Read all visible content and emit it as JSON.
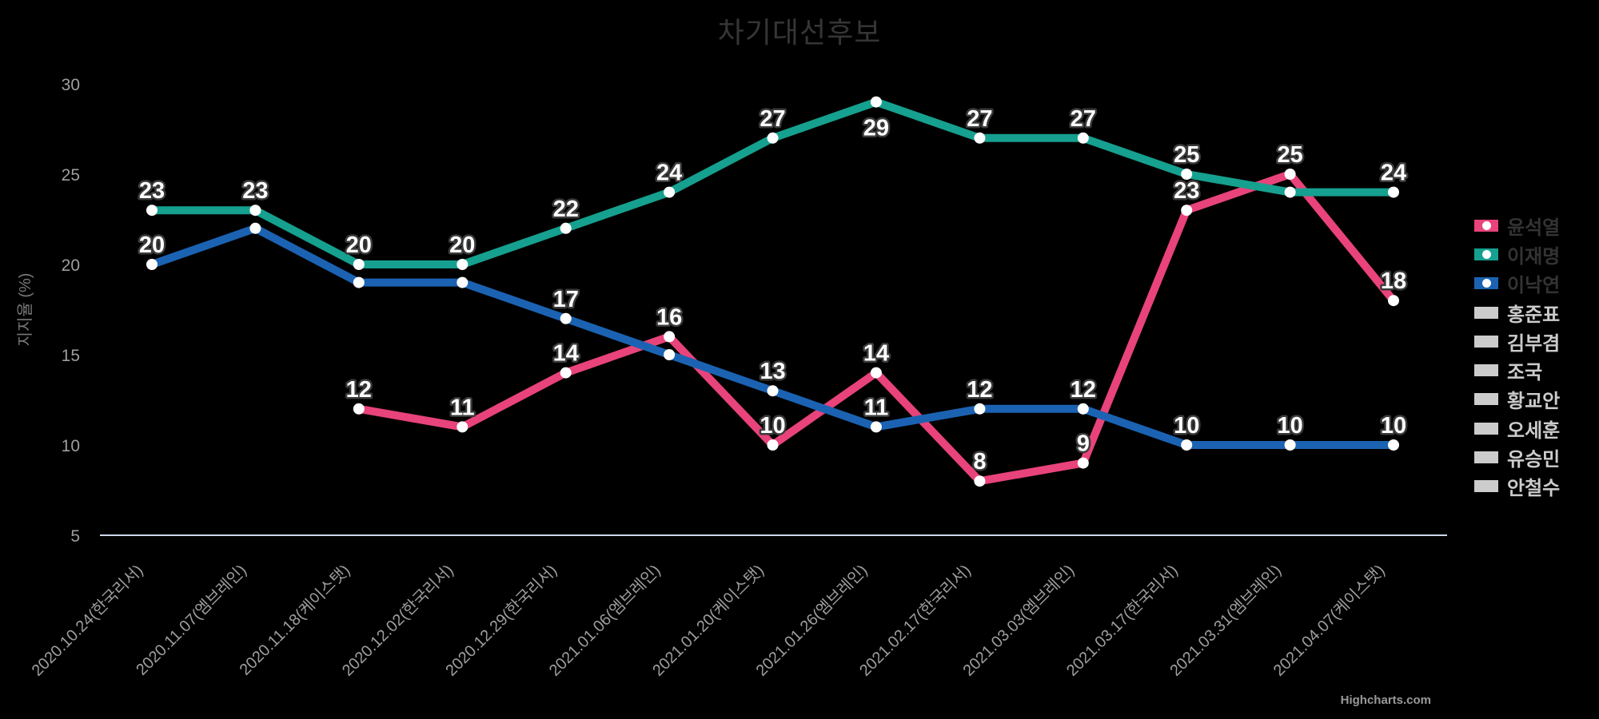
{
  "title": "차기대선후보",
  "credits": "Highcharts.com",
  "colors": {
    "background": "#000000",
    "title": "#353535",
    "axis_label": "#9e9e9e",
    "axis_line": "#ccd6eb",
    "y_axis_title": "#787878",
    "legend_active_text": "#333333",
    "legend_disabled": "#cccccc",
    "data_label_text": "#ffffff",
    "data_label_outline": "#3a3a3a",
    "marker": "#ffffff"
  },
  "chart_data": {
    "type": "line",
    "title": "차기대선후보",
    "xlabel": "",
    "ylabel": "지지율 (%)",
    "ylim": [
      5,
      30
    ],
    "yticks": [
      5,
      10,
      15,
      20,
      25,
      30
    ],
    "grid": false,
    "legend_position": "right",
    "categories": [
      "2020.10.24(한국리서)",
      "2020.11.07(엠브레인)",
      "2020.11.18(케이스탯)",
      "2020.12.02(한국리서)",
      "2020.12.29(한국리서)",
      "2021.01.06(엠브레인)",
      "2021.01.20(케이스탯)",
      "2021.01.26(엠브레인)",
      "2021.02.17(한국리서)",
      "2021.03.03(엠브레인)",
      "2021.03.17(한국리서)",
      "2021.03.31(엠브레인)",
      "2021.04.07(케이스탯)"
    ],
    "series": [
      {
        "name": "윤석열",
        "color": "#e8437a",
        "values": [
          null,
          null,
          12,
          11,
          14,
          16,
          10,
          14,
          8,
          9,
          23,
          25,
          18
        ],
        "labels_hidden_at": []
      },
      {
        "name": "이재명",
        "color": "#16a08f",
        "values": [
          23,
          23,
          20,
          20,
          22,
          24,
          27,
          29,
          27,
          27,
          25,
          24,
          24
        ],
        "labels_hidden_at": [
          11
        ]
      },
      {
        "name": "이낙연",
        "color": "#1b63b2",
        "values": [
          20,
          22,
          19,
          19,
          17,
          15,
          13,
          11,
          12,
          12,
          10,
          10,
          10
        ],
        "labels_hidden_at": [
          1,
          2,
          3,
          5
        ]
      }
    ]
  },
  "legend": {
    "items": [
      {
        "label": "윤석열",
        "active": true
      },
      {
        "label": "이재명",
        "active": true
      },
      {
        "label": "이낙연",
        "active": true
      },
      {
        "label": "홍준표",
        "active": false
      },
      {
        "label": "김부겸",
        "active": false
      },
      {
        "label": "조국",
        "active": false
      },
      {
        "label": "황교안",
        "active": false
      },
      {
        "label": "오세훈",
        "active": false
      },
      {
        "label": "유승민",
        "active": false
      },
      {
        "label": "안철수",
        "active": false
      }
    ]
  }
}
